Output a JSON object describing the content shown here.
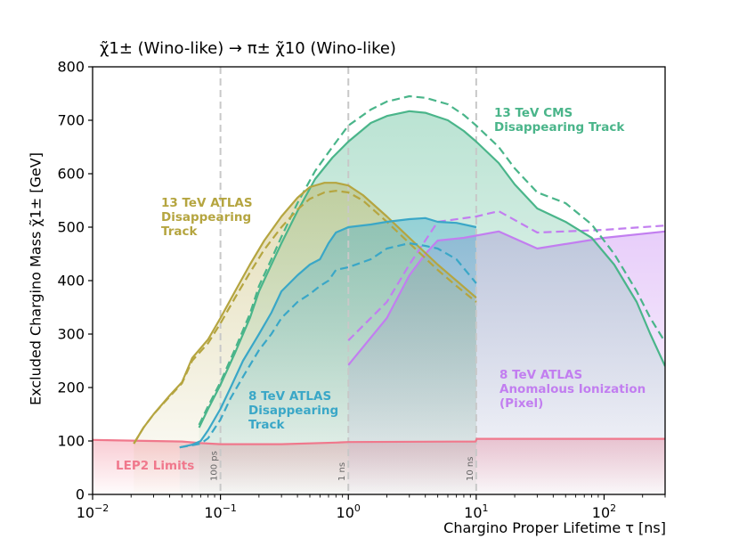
{
  "chart_data": {
    "type": "area",
    "title": "χ̃1± (Wino-like) → π± χ̃10 (Wino-like)",
    "xlabel": "Chargino Proper Lifetime τ [ns]",
    "ylabel": "Excluded Chargino Mass χ̃1± [GeV]",
    "xscale": "log",
    "xlim": [
      0.01,
      300
    ],
    "ylim": [
      0,
      800
    ],
    "x_ticks": [
      {
        "value": 0.01,
        "base": "10",
        "exp": "−2"
      },
      {
        "value": 0.1,
        "base": "10",
        "exp": "−1"
      },
      {
        "value": 1,
        "base": "10",
        "exp": "0"
      },
      {
        "value": 10,
        "base": "10",
        "exp": "1"
      },
      {
        "value": 100,
        "base": "10",
        "exp": "2"
      }
    ],
    "y_ticks": [
      0,
      100,
      200,
      300,
      400,
      500,
      600,
      700,
      800
    ],
    "reference_lines": [
      {
        "x": 0.1,
        "label": "100 ps"
      },
      {
        "x": 1,
        "label": "1 ns"
      },
      {
        "x": 10,
        "label": "10 ns"
      }
    ],
    "series": [
      {
        "name": "LEP2 Limits",
        "label_lines": [
          "LEP2 Limits"
        ],
        "color": "#f0788c",
        "observed": [
          [
            0.01,
            102
          ],
          [
            0.05,
            99
          ],
          [
            0.07,
            96
          ],
          [
            0.1,
            94
          ],
          [
            0.3,
            94
          ],
          [
            0.8,
            97
          ],
          [
            1.0,
            98
          ],
          [
            9.9,
            99
          ],
          [
            10.1,
            104
          ],
          [
            300,
            104
          ]
        ],
        "expected": null
      },
      {
        "name": "13 TeV ATLAS Disappearing Track",
        "label_lines": [
          "13 TeV ATLAS",
          "Disappearing",
          "Track"
        ],
        "color": "#b5a540",
        "observed": [
          [
            0.021,
            95
          ],
          [
            0.025,
            125
          ],
          [
            0.03,
            150
          ],
          [
            0.04,
            185
          ],
          [
            0.05,
            210
          ],
          [
            0.06,
            255
          ],
          [
            0.08,
            290
          ],
          [
            0.1,
            330
          ],
          [
            0.13,
            380
          ],
          [
            0.17,
            430
          ],
          [
            0.22,
            475
          ],
          [
            0.3,
            520
          ],
          [
            0.4,
            555
          ],
          [
            0.5,
            575
          ],
          [
            0.65,
            583
          ],
          [
            0.8,
            583
          ],
          [
            1.0,
            578
          ],
          [
            1.3,
            560
          ],
          [
            2.0,
            520
          ],
          [
            3.0,
            480
          ],
          [
            5.0,
            430
          ],
          [
            7.0,
            400
          ],
          [
            10.0,
            368
          ]
        ],
        "expected": [
          [
            0.021,
            95
          ],
          [
            0.025,
            125
          ],
          [
            0.03,
            150
          ],
          [
            0.04,
            183
          ],
          [
            0.05,
            208
          ],
          [
            0.06,
            250
          ],
          [
            0.08,
            283
          ],
          [
            0.1,
            320
          ],
          [
            0.13,
            368
          ],
          [
            0.17,
            415
          ],
          [
            0.22,
            458
          ],
          [
            0.3,
            500
          ],
          [
            0.4,
            533
          ],
          [
            0.5,
            553
          ],
          [
            0.65,
            565
          ],
          [
            0.8,
            568
          ],
          [
            1.0,
            565
          ],
          [
            1.3,
            550
          ],
          [
            2.0,
            510
          ],
          [
            3.0,
            470
          ],
          [
            5.0,
            420
          ],
          [
            7.0,
            390
          ],
          [
            10.0,
            360
          ]
        ]
      },
      {
        "name": "13 TeV CMS Disappearing Track",
        "label_lines": [
          "13 TeV CMS",
          "Disappearing Track"
        ],
        "color": "#4ab58a",
        "observed": [
          [
            0.068,
            125
          ],
          [
            0.08,
            160
          ],
          [
            0.1,
            205
          ],
          [
            0.13,
            265
          ],
          [
            0.17,
            330
          ],
          [
            0.2,
            380
          ],
          [
            0.25,
            430
          ],
          [
            0.3,
            470
          ],
          [
            0.4,
            530
          ],
          [
            0.55,
            590
          ],
          [
            0.75,
            630
          ],
          [
            1.0,
            660
          ],
          [
            1.5,
            695
          ],
          [
            2.0,
            708
          ],
          [
            3.0,
            717
          ],
          [
            4.0,
            714
          ],
          [
            6.0,
            700
          ],
          [
            8.0,
            680
          ],
          [
            10.0,
            660
          ],
          [
            15.0,
            620
          ],
          [
            20.0,
            580
          ],
          [
            30.0,
            535
          ],
          [
            50.0,
            510
          ],
          [
            80.0,
            480
          ],
          [
            120.0,
            430
          ],
          [
            180.0,
            360
          ],
          [
            230.0,
            300
          ],
          [
            300.0,
            240
          ]
        ],
        "expected": [
          [
            0.068,
            130
          ],
          [
            0.08,
            165
          ],
          [
            0.1,
            210
          ],
          [
            0.13,
            272
          ],
          [
            0.17,
            338
          ],
          [
            0.2,
            390
          ],
          [
            0.25,
            440
          ],
          [
            0.3,
            482
          ],
          [
            0.4,
            545
          ],
          [
            0.55,
            605
          ],
          [
            0.75,
            650
          ],
          [
            1.0,
            690
          ],
          [
            1.5,
            720
          ],
          [
            2.0,
            735
          ],
          [
            3.0,
            745
          ],
          [
            4.0,
            742
          ],
          [
            6.0,
            730
          ],
          [
            8.0,
            710
          ],
          [
            10.0,
            690
          ],
          [
            15.0,
            650
          ],
          [
            20.0,
            610
          ],
          [
            30.0,
            565
          ],
          [
            50.0,
            545
          ],
          [
            80.0,
            505
          ],
          [
            120.0,
            450
          ],
          [
            180.0,
            380
          ],
          [
            230.0,
            330
          ],
          [
            300.0,
            285
          ]
        ]
      },
      {
        "name": "8 TeV ATLAS Disappearing Track",
        "label_lines": [
          "8 TeV ATLAS",
          "Disappearing",
          "Track"
        ],
        "color": "#3aa7c7",
        "observed": [
          [
            0.048,
            88
          ],
          [
            0.06,
            93
          ],
          [
            0.07,
            100
          ],
          [
            0.08,
            120
          ],
          [
            0.1,
            160
          ],
          [
            0.12,
            200
          ],
          [
            0.15,
            250
          ],
          [
            0.2,
            300
          ],
          [
            0.25,
            340
          ],
          [
            0.3,
            380
          ],
          [
            0.4,
            410
          ],
          [
            0.5,
            430
          ],
          [
            0.6,
            440
          ],
          [
            0.7,
            470
          ],
          [
            0.8,
            490
          ],
          [
            1.0,
            500
          ],
          [
            1.5,
            505
          ],
          [
            2.0,
            510
          ],
          [
            3.0,
            515
          ],
          [
            4.0,
            517
          ],
          [
            5.0,
            510
          ],
          [
            7.0,
            508
          ],
          [
            10.0,
            500
          ]
        ],
        "expected": [
          [
            0.048,
            88
          ],
          [
            0.06,
            92
          ],
          [
            0.07,
            95
          ],
          [
            0.08,
            105
          ],
          [
            0.1,
            140
          ],
          [
            0.12,
            180
          ],
          [
            0.15,
            220
          ],
          [
            0.2,
            270
          ],
          [
            0.25,
            300
          ],
          [
            0.3,
            330
          ],
          [
            0.4,
            360
          ],
          [
            0.5,
            375
          ],
          [
            0.6,
            390
          ],
          [
            0.7,
            400
          ],
          [
            0.8,
            420
          ],
          [
            1.0,
            425
          ],
          [
            1.5,
            440
          ],
          [
            2.0,
            460
          ],
          [
            3.0,
            470
          ],
          [
            4.0,
            465
          ],
          [
            5.0,
            460
          ],
          [
            7.0,
            440
          ],
          [
            10.0,
            395
          ]
        ]
      },
      {
        "name": "8 TeV ATLAS Anomalous Ionization (Pixel)",
        "label_lines": [
          "8 TeV ATLAS",
          "Anomalous Ionization",
          "(Pixel)"
        ],
        "color": "#c27ef0",
        "observed": [
          [
            1.0,
            242
          ],
          [
            2.0,
            330
          ],
          [
            3.0,
            410
          ],
          [
            4.0,
            450
          ],
          [
            5.0,
            475
          ],
          [
            8.0,
            480
          ],
          [
            15.0,
            492
          ],
          [
            30.0,
            460
          ],
          [
            100.0,
            480
          ],
          [
            300.0,
            492
          ]
        ],
        "expected": [
          [
            1.0,
            288
          ],
          [
            2.0,
            360
          ],
          [
            3.0,
            430
          ],
          [
            5.0,
            510
          ],
          [
            10.0,
            520
          ],
          [
            15.0,
            530
          ],
          [
            30.0,
            490
          ],
          [
            100.0,
            495
          ],
          [
            300.0,
            503
          ]
        ]
      }
    ]
  }
}
